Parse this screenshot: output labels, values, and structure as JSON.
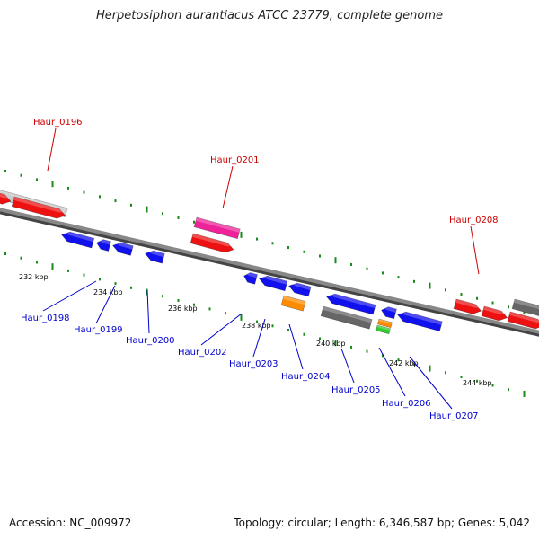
{
  "title": "Herpetosiphon aurantiacus ATCC 23779, complete genome",
  "footer": {
    "accession": "Accession: NC_009972",
    "summary": "Topology: circular; Length: 6,346,587 bp; Genes: 5,042"
  },
  "colors": {
    "backbone": "#888888",
    "tick": "#1a8a1a",
    "label_top": "#cc0000",
    "label_bottom": "#0000cc",
    "kbp_text": "#000000"
  },
  "kbp_labels": [
    "232 kbp",
    "234 kbp",
    "236 kbp",
    "238 kbp",
    "240 kbp",
    "242 kbp",
    "244 kbp"
  ],
  "gene_labels_top": [
    "Haur_0196",
    "Haur_0201",
    "Haur_0208"
  ],
  "gene_labels_bottom": [
    "Haur_0198",
    "Haur_0199",
    "Haur_0200",
    "Haur_0202",
    "Haur_0203",
    "Haur_0204",
    "Haur_0205",
    "Haur_0206",
    "Haur_0207"
  ]
}
